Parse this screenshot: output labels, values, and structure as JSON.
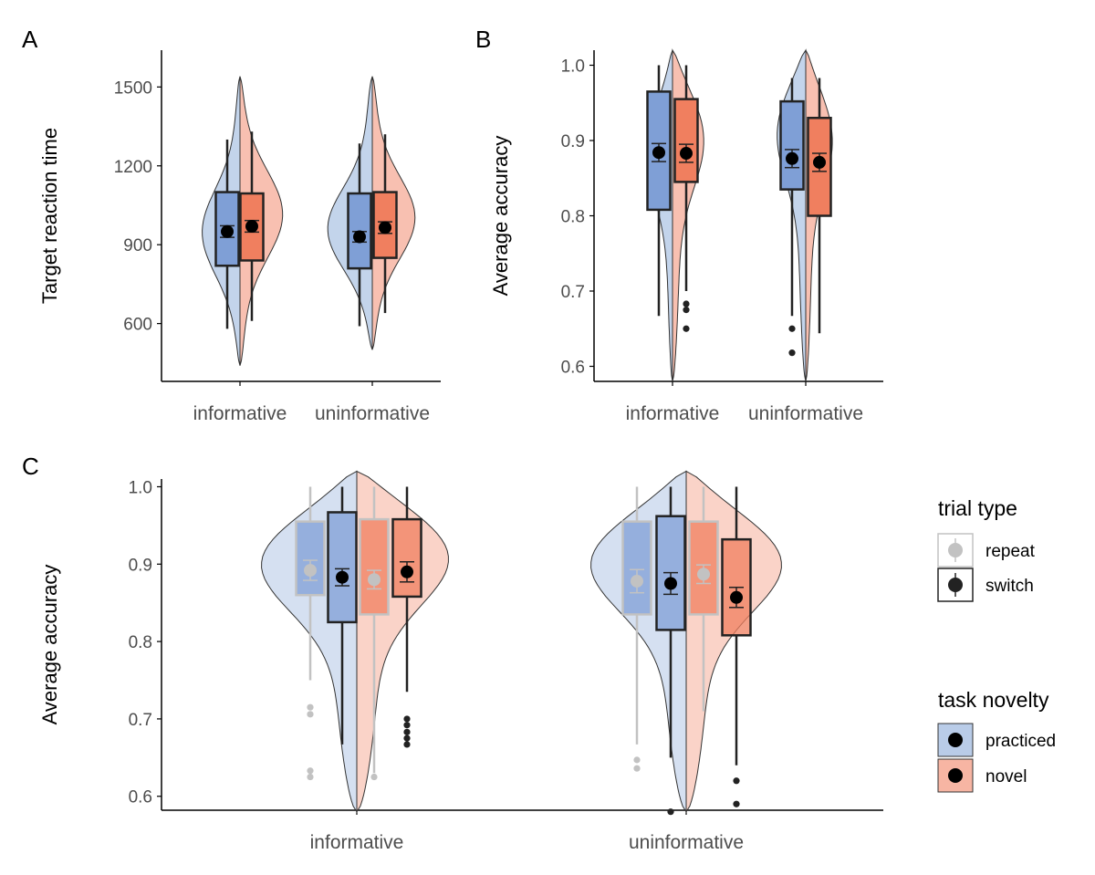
{
  "figure": {
    "colors": {
      "practiced_fill": "#7f9fd6",
      "novel_fill": "#f07f5f",
      "practiced_violin": "#b9cce8",
      "novel_violin": "#f7b5a3",
      "switch_color": "#222222",
      "repeat_color": "#c2c2c2",
      "axis": "#000000"
    }
  },
  "chart_data": [
    {
      "panel": "A",
      "type": "violin-box",
      "ylabel": "Target reaction time",
      "ylim": [
        380,
        1640
      ],
      "yticks": [
        600,
        900,
        1200,
        1500
      ],
      "categories": [
        "informative",
        "uninformative"
      ],
      "groups": [
        {
          "category": "informative",
          "novelty": "practiced",
          "violin": {
            "min": 440,
            "max": 1540,
            "peak": 940,
            "width": 0.8
          },
          "box": {
            "q1": 820,
            "median": 945,
            "q3": 1100
          },
          "whisker": [
            580,
            1300
          ],
          "mean": 950,
          "err": 22,
          "outliers": []
        },
        {
          "category": "informative",
          "novelty": "novel",
          "violin": {
            "min": 440,
            "max": 1540,
            "peak": 1020,
            "width": 0.9
          },
          "box": {
            "q1": 840,
            "median": 960,
            "q3": 1095
          },
          "whisker": [
            610,
            1330
          ],
          "mean": 970,
          "err": 22,
          "outliers": []
        },
        {
          "category": "uninformative",
          "novelty": "practiced",
          "violin": {
            "min": 500,
            "max": 1540,
            "peak": 950,
            "width": 0.95
          },
          "box": {
            "q1": 810,
            "median": 930,
            "q3": 1095
          },
          "whisker": [
            590,
            1285
          ],
          "mean": 930,
          "err": 20,
          "outliers": []
        },
        {
          "category": "uninformative",
          "novelty": "novel",
          "violin": {
            "min": 500,
            "max": 1540,
            "peak": 1000,
            "width": 0.9
          },
          "box": {
            "q1": 850,
            "median": 960,
            "q3": 1100
          },
          "whisker": [
            640,
            1320
          ],
          "mean": 965,
          "err": 22,
          "outliers": []
        }
      ]
    },
    {
      "panel": "B",
      "type": "violin-box",
      "ylabel": "Average accuracy",
      "ylim": [
        0.58,
        1.02
      ],
      "yticks": [
        0.6,
        0.7,
        0.8,
        0.9,
        1.0
      ],
      "yticklabels": [
        "0.6",
        "0.7",
        "0.8",
        "0.9",
        "1.0"
      ],
      "categories": [
        "informative",
        "uninformative"
      ],
      "groups": [
        {
          "category": "informative",
          "novelty": "practiced",
          "violin": {
            "min": 0.58,
            "max": 1.02,
            "peak": 0.9,
            "width": 0.75
          },
          "box": {
            "q1": 0.808,
            "median": 0.88,
            "q3": 0.965
          },
          "whisker": [
            0.667,
            1.0
          ],
          "mean": 0.884,
          "err": 0.012,
          "outliers": []
        },
        {
          "category": "informative",
          "novelty": "novel",
          "violin": {
            "min": 0.58,
            "max": 1.02,
            "peak": 0.92,
            "width": 1.0
          },
          "box": {
            "q1": 0.845,
            "median": 0.9,
            "q3": 0.955
          },
          "whisker": [
            0.7,
            1.0
          ],
          "mean": 0.883,
          "err": 0.012,
          "outliers": [
            0.683,
            0.675,
            0.65
          ]
        },
        {
          "category": "uninformative",
          "novelty": "practiced",
          "violin": {
            "min": 0.58,
            "max": 1.02,
            "peak": 0.93,
            "width": 0.95
          },
          "box": {
            "q1": 0.835,
            "median": 0.9,
            "q3": 0.952
          },
          "whisker": [
            0.667,
            0.983
          ],
          "mean": 0.876,
          "err": 0.012,
          "outliers": [
            0.65,
            0.618
          ]
        },
        {
          "category": "uninformative",
          "novelty": "novel",
          "violin": {
            "min": 0.58,
            "max": 1.02,
            "peak": 0.92,
            "width": 0.85
          },
          "box": {
            "q1": 0.8,
            "median": 0.88,
            "q3": 0.93
          },
          "whisker": [
            0.644,
            0.983
          ],
          "mean": 0.871,
          "err": 0.012,
          "outliers": []
        }
      ]
    },
    {
      "panel": "C",
      "type": "violin-box",
      "ylabel": "Average accuracy",
      "ylim": [
        0.582,
        1.01
      ],
      "yticks": [
        0.6,
        0.7,
        0.8,
        0.9,
        1.0
      ],
      "yticklabels": [
        "0.6",
        "0.7",
        "0.8",
        "0.9",
        "1.0"
      ],
      "categories": [
        "informative",
        "uninformative"
      ],
      "groups": [
        {
          "category": "informative",
          "novelty": "practiced",
          "trial": "repeat",
          "violin": {
            "min": 0.58,
            "max": 1.02,
            "peak": 0.92,
            "width": 1.0
          },
          "box": {
            "q1": 0.86,
            "median": 0.91,
            "q3": 0.955
          },
          "whisker": [
            0.75,
            1.0
          ],
          "mean": 0.892,
          "err": 0.013,
          "outliers": [
            0.715,
            0.706,
            0.633,
            0.625
          ]
        },
        {
          "category": "informative",
          "novelty": "practiced",
          "trial": "switch",
          "violin": null,
          "box": {
            "q1": 0.825,
            "median": 0.89,
            "q3": 0.967
          },
          "whisker": [
            0.667,
            1.0
          ],
          "mean": 0.883,
          "err": 0.011,
          "outliers": []
        },
        {
          "category": "informative",
          "novelty": "novel",
          "trial": "repeat",
          "violin": {
            "min": 0.58,
            "max": 1.02,
            "peak": 0.93,
            "width": 1.0
          },
          "box": {
            "q1": 0.835,
            "median": 0.89,
            "q3": 0.958
          },
          "whisker": [
            0.63,
            1.0
          ],
          "mean": 0.88,
          "err": 0.012,
          "outliers": [
            0.625
          ]
        },
        {
          "category": "informative",
          "novelty": "novel",
          "trial": "switch",
          "violin": null,
          "box": {
            "q1": 0.858,
            "median": 0.92,
            "q3": 0.958
          },
          "whisker": [
            0.735,
            1.0
          ],
          "mean": 0.89,
          "err": 0.013,
          "outliers": [
            0.7,
            0.692,
            0.683,
            0.675,
            0.667
          ]
        },
        {
          "category": "uninformative",
          "novelty": "practiced",
          "trial": "repeat",
          "violin": {
            "min": 0.58,
            "max": 1.02,
            "peak": 0.92,
            "width": 1.0
          },
          "box": {
            "q1": 0.835,
            "median": 0.9,
            "q3": 0.955
          },
          "whisker": [
            0.667,
            1.0
          ],
          "mean": 0.878,
          "err": 0.015,
          "outliers": [
            0.647,
            0.636
          ]
        },
        {
          "category": "uninformative",
          "novelty": "practiced",
          "trial": "switch",
          "violin": null,
          "box": {
            "q1": 0.815,
            "median": 0.88,
            "q3": 0.962
          },
          "whisker": [
            0.65,
            1.0
          ],
          "mean": 0.875,
          "err": 0.014,
          "outliers": [
            0.58
          ]
        },
        {
          "category": "uninformative",
          "novelty": "novel",
          "trial": "repeat",
          "violin": {
            "min": 0.58,
            "max": 1.02,
            "peak": 0.92,
            "width": 1.0
          },
          "box": {
            "q1": 0.835,
            "median": 0.895,
            "q3": 0.955
          },
          "whisker": [
            0.71,
            1.0
          ],
          "mean": 0.887,
          "err": 0.012,
          "outliers": []
        },
        {
          "category": "uninformative",
          "novelty": "novel",
          "trial": "switch",
          "violin": null,
          "box": {
            "q1": 0.808,
            "median": 0.862,
            "q3": 0.932
          },
          "whisker": [
            0.64,
            1.0
          ],
          "mean": 0.857,
          "err": 0.013,
          "outliers": [
            0.62,
            0.59
          ]
        }
      ]
    }
  ],
  "panel_labels": [
    "A",
    "B",
    "C"
  ],
  "legend": {
    "trial_type": {
      "title": "trial type",
      "items": [
        "repeat",
        "switch"
      ]
    },
    "task_novelty": {
      "title": "task novelty",
      "items": [
        "practiced",
        "novel"
      ]
    }
  }
}
